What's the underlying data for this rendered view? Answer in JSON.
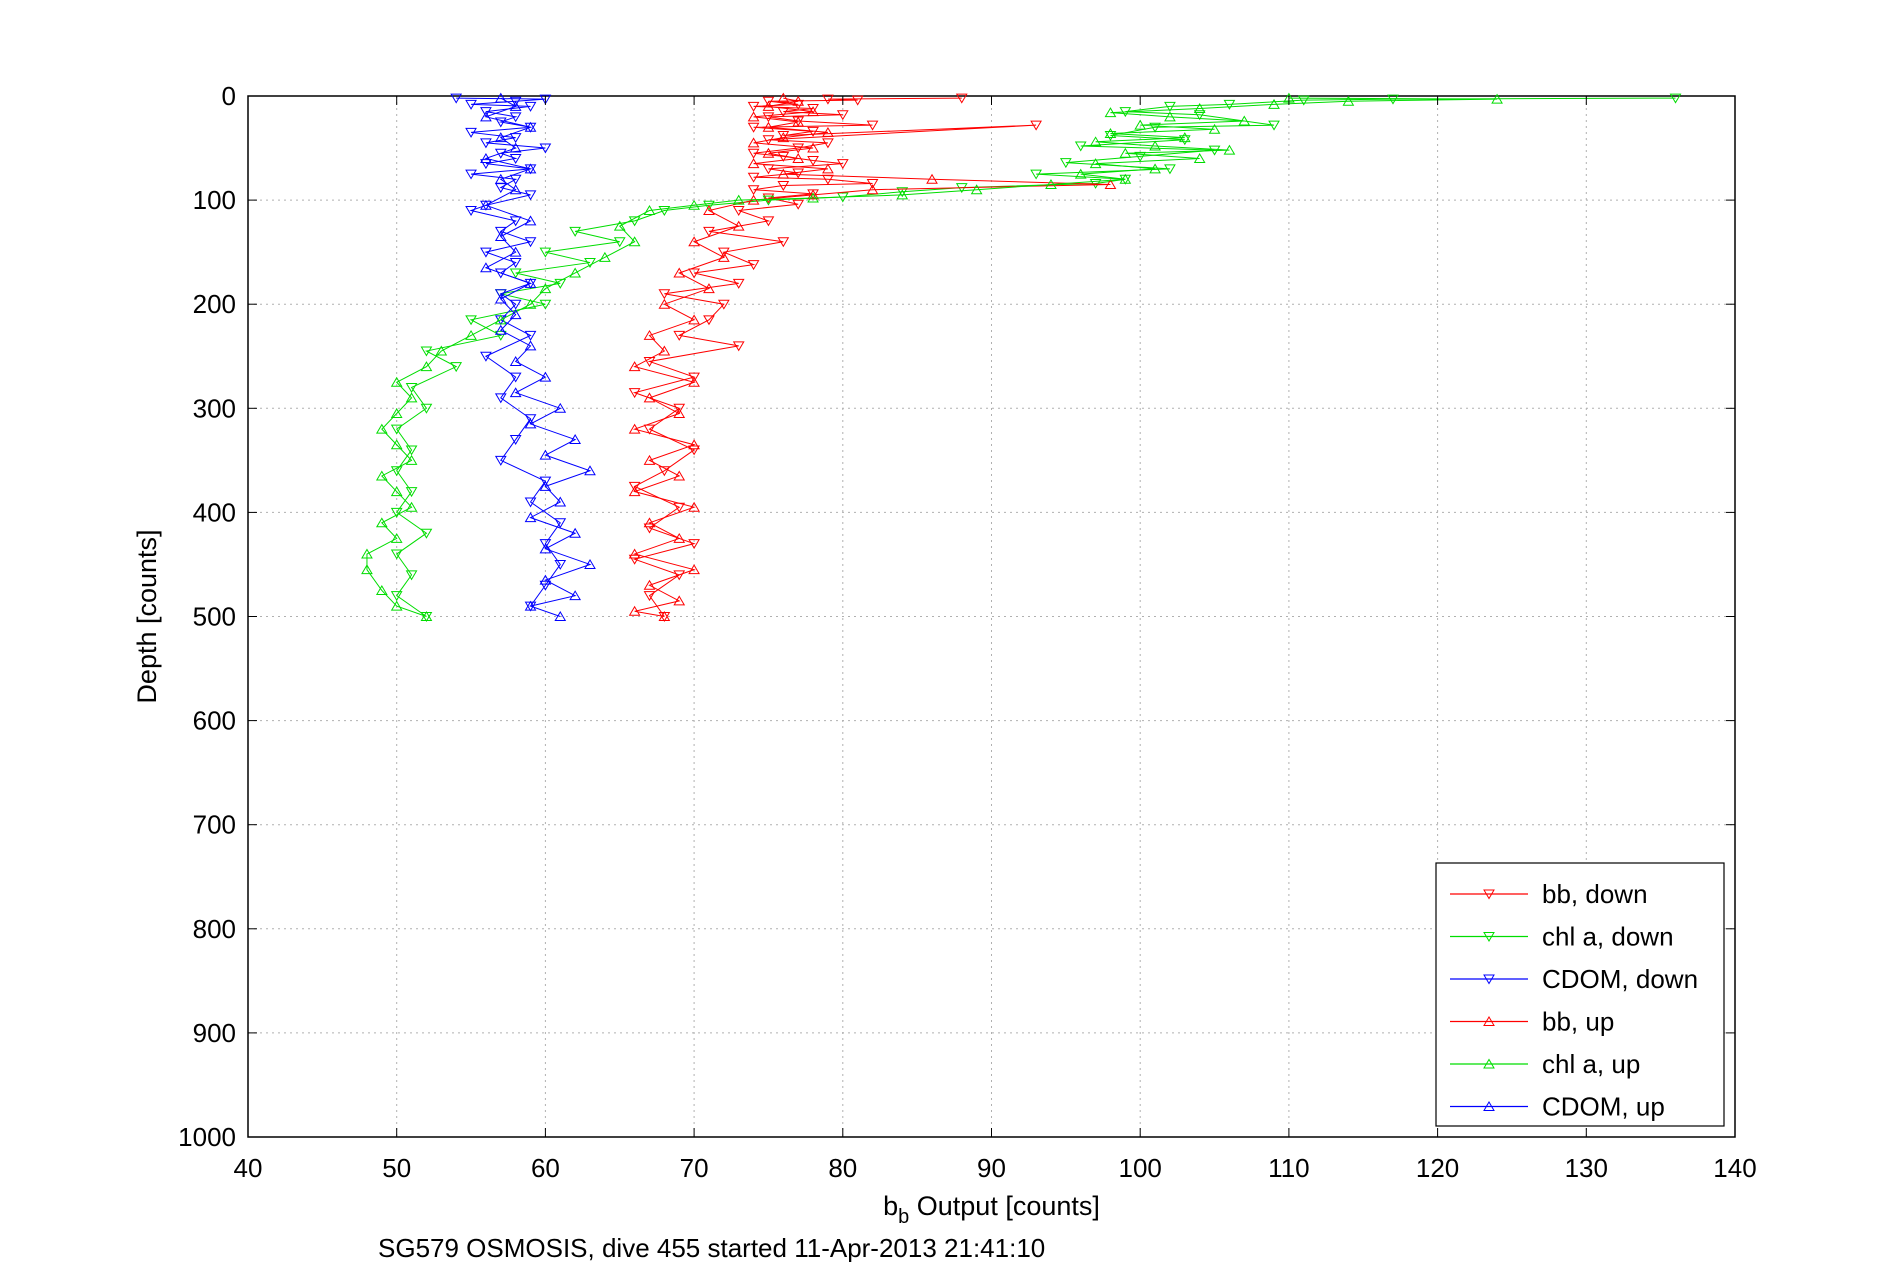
{
  "chart_data": {
    "type": "scatter",
    "xlabel_main": "b",
    "xlabel_sub": "b",
    "xlabel_rest": " Output [counts]",
    "ylabel": "Depth [counts]",
    "caption": "SG579 OSMOSIS, dive 455 started 11-Apr-2013 21:41:10",
    "xlim": [
      40,
      140
    ],
    "ylim": [
      0,
      1000
    ],
    "y_reversed": true,
    "grid": true,
    "legend_position": "bottom-right",
    "xticks": [
      "40",
      "50",
      "60",
      "70",
      "80",
      "90",
      "100",
      "110",
      "120",
      "130",
      "140"
    ],
    "yticks": [
      "0",
      "100",
      "200",
      "300",
      "400",
      "500",
      "600",
      "700",
      "800",
      "900",
      "1000"
    ],
    "series": [
      {
        "name": "bb, down",
        "color": "#ff0000",
        "marker": "triangle-down",
        "lines": true,
        "points": [
          [
            88,
            2
          ],
          [
            79,
            3
          ],
          [
            81,
            4
          ],
          [
            75,
            5
          ],
          [
            77,
            8
          ],
          [
            74,
            10
          ],
          [
            78,
            12
          ],
          [
            76,
            15
          ],
          [
            80,
            18
          ],
          [
            75,
            20
          ],
          [
            77,
            24
          ],
          [
            82,
            28
          ],
          [
            74,
            30
          ],
          [
            78,
            34
          ],
          [
            76,
            38
          ],
          [
            93,
            28
          ],
          [
            75,
            42
          ],
          [
            79,
            45
          ],
          [
            77,
            50
          ],
          [
            74,
            55
          ],
          [
            76,
            58
          ],
          [
            78,
            62
          ],
          [
            80,
            65
          ],
          [
            75,
            70
          ],
          [
            77,
            74
          ],
          [
            74,
            78
          ],
          [
            79,
            80
          ],
          [
            82,
            84
          ],
          [
            76,
            86
          ],
          [
            74,
            90
          ],
          [
            78,
            94
          ],
          [
            75,
            98
          ],
          [
            77,
            104
          ],
          [
            73,
            110
          ],
          [
            75,
            120
          ],
          [
            71,
            130
          ],
          [
            76,
            140
          ],
          [
            72,
            150
          ],
          [
            74,
            162
          ],
          [
            70,
            170
          ],
          [
            73,
            180
          ],
          [
            68,
            190
          ],
          [
            72,
            200
          ],
          [
            71,
            215
          ],
          [
            69,
            230
          ],
          [
            73,
            240
          ],
          [
            67,
            255
          ],
          [
            70,
            270
          ],
          [
            66,
            285
          ],
          [
            69,
            300
          ],
          [
            67,
            320
          ],
          [
            70,
            340
          ],
          [
            68,
            360
          ],
          [
            66,
            375
          ],
          [
            69,
            395
          ],
          [
            67,
            415
          ],
          [
            70,
            430
          ],
          [
            66,
            445
          ],
          [
            69,
            460
          ],
          [
            67,
            480
          ],
          [
            68,
            500
          ]
        ]
      },
      {
        "name": "chl a, down",
        "color": "#00dd00",
        "marker": "triangle-down",
        "lines": true,
        "points": [
          [
            136,
            2
          ],
          [
            117,
            3
          ],
          [
            111,
            4
          ],
          [
            106,
            8
          ],
          [
            102,
            10
          ],
          [
            99,
            15
          ],
          [
            104,
            18
          ],
          [
            109,
            28
          ],
          [
            101,
            30
          ],
          [
            98,
            38
          ],
          [
            103,
            42
          ],
          [
            96,
            48
          ],
          [
            105,
            52
          ],
          [
            100,
            58
          ],
          [
            95,
            64
          ],
          [
            102,
            70
          ],
          [
            93,
            75
          ],
          [
            99,
            80
          ],
          [
            97,
            84
          ],
          [
            88,
            88
          ],
          [
            84,
            92
          ],
          [
            80,
            97
          ],
          [
            75,
            100
          ],
          [
            71,
            105
          ],
          [
            68,
            110
          ],
          [
            66,
            120
          ],
          [
            62,
            130
          ],
          [
            65,
            140
          ],
          [
            60,
            150
          ],
          [
            63,
            160
          ],
          [
            58,
            170
          ],
          [
            61,
            180
          ],
          [
            57,
            190
          ],
          [
            60,
            200
          ],
          [
            55,
            215
          ],
          [
            57,
            230
          ],
          [
            52,
            245
          ],
          [
            54,
            260
          ],
          [
            51,
            280
          ],
          [
            52,
            300
          ],
          [
            50,
            320
          ],
          [
            51,
            340
          ],
          [
            50,
            360
          ],
          [
            51,
            380
          ],
          [
            50,
            400
          ],
          [
            52,
            420
          ],
          [
            50,
            440
          ],
          [
            51,
            460
          ],
          [
            50,
            480
          ],
          [
            52,
            500
          ]
        ]
      },
      {
        "name": "CDOM, down",
        "color": "#0000ff",
        "marker": "triangle-down",
        "lines": true,
        "points": [
          [
            54,
            2
          ],
          [
            60,
            3
          ],
          [
            58,
            5
          ],
          [
            55,
            8
          ],
          [
            59,
            10
          ],
          [
            56,
            15
          ],
          [
            58,
            20
          ],
          [
            57,
            25
          ],
          [
            59,
            30
          ],
          [
            55,
            35
          ],
          [
            58,
            40
          ],
          [
            56,
            45
          ],
          [
            60,
            50
          ],
          [
            57,
            55
          ],
          [
            58,
            60
          ],
          [
            56,
            65
          ],
          [
            59,
            70
          ],
          [
            55,
            75
          ],
          [
            58,
            80
          ],
          [
            57,
            88
          ],
          [
            59,
            95
          ],
          [
            56,
            105
          ],
          [
            55,
            110
          ],
          [
            58,
            120
          ],
          [
            57,
            130
          ],
          [
            59,
            140
          ],
          [
            56,
            150
          ],
          [
            58,
            160
          ],
          [
            57,
            170
          ],
          [
            59,
            180
          ],
          [
            57,
            190
          ],
          [
            58,
            200
          ],
          [
            57,
            215
          ],
          [
            59,
            230
          ],
          [
            56,
            250
          ],
          [
            58,
            270
          ],
          [
            57,
            290
          ],
          [
            59,
            310
          ],
          [
            58,
            330
          ],
          [
            57,
            350
          ],
          [
            60,
            370
          ],
          [
            59,
            390
          ],
          [
            61,
            410
          ],
          [
            60,
            430
          ],
          [
            61,
            450
          ],
          [
            60,
            470
          ],
          [
            59,
            490
          ]
        ]
      },
      {
        "name": "bb, up",
        "color": "#ff0000",
        "marker": "triangle-up",
        "lines": true,
        "points": [
          [
            68,
            500
          ],
          [
            66,
            495
          ],
          [
            69,
            485
          ],
          [
            67,
            470
          ],
          [
            70,
            455
          ],
          [
            66,
            440
          ],
          [
            69,
            425
          ],
          [
            67,
            410
          ],
          [
            70,
            395
          ],
          [
            66,
            380
          ],
          [
            69,
            365
          ],
          [
            67,
            350
          ],
          [
            70,
            335
          ],
          [
            66,
            320
          ],
          [
            69,
            305
          ],
          [
            67,
            290
          ],
          [
            70,
            275
          ],
          [
            66,
            260
          ],
          [
            68,
            245
          ],
          [
            67,
            230
          ],
          [
            70,
            215
          ],
          [
            68,
            200
          ],
          [
            71,
            185
          ],
          [
            69,
            170
          ],
          [
            72,
            155
          ],
          [
            70,
            140
          ],
          [
            73,
            125
          ],
          [
            71,
            110
          ],
          [
            74,
            100
          ],
          [
            78,
            95
          ],
          [
            82,
            90
          ],
          [
            98,
            85
          ],
          [
            86,
            80
          ],
          [
            76,
            75
          ],
          [
            79,
            70
          ],
          [
            74,
            65
          ],
          [
            77,
            60
          ],
          [
            75,
            55
          ],
          [
            78,
            50
          ],
          [
            74,
            45
          ],
          [
            76,
            40
          ],
          [
            79,
            35
          ],
          [
            75,
            30
          ],
          [
            77,
            25
          ],
          [
            74,
            20
          ],
          [
            78,
            15
          ],
          [
            75,
            10
          ],
          [
            77,
            5
          ],
          [
            76,
            2
          ]
        ]
      },
      {
        "name": "chl a, up",
        "color": "#00dd00",
        "marker": "triangle-up",
        "lines": true,
        "points": [
          [
            52,
            500
          ],
          [
            50,
            490
          ],
          [
            49,
            475
          ],
          [
            48,
            455
          ],
          [
            48,
            440
          ],
          [
            50,
            425
          ],
          [
            49,
            410
          ],
          [
            51,
            395
          ],
          [
            50,
            380
          ],
          [
            49,
            365
          ],
          [
            51,
            350
          ],
          [
            50,
            335
          ],
          [
            49,
            320
          ],
          [
            50,
            305
          ],
          [
            51,
            290
          ],
          [
            50,
            275
          ],
          [
            52,
            260
          ],
          [
            53,
            245
          ],
          [
            55,
            230
          ],
          [
            57,
            215
          ],
          [
            59,
            200
          ],
          [
            60,
            185
          ],
          [
            62,
            170
          ],
          [
            64,
            155
          ],
          [
            66,
            140
          ],
          [
            65,
            125
          ],
          [
            67,
            110
          ],
          [
            70,
            105
          ],
          [
            73,
            100
          ],
          [
            78,
            98
          ],
          [
            84,
            95
          ],
          [
            89,
            90
          ],
          [
            94,
            85
          ],
          [
            99,
            80
          ],
          [
            96,
            75
          ],
          [
            101,
            70
          ],
          [
            97,
            65
          ],
          [
            104,
            60
          ],
          [
            99,
            55
          ],
          [
            106,
            52
          ],
          [
            101,
            48
          ],
          [
            97,
            44
          ],
          [
            103,
            40
          ],
          [
            98,
            36
          ],
          [
            105,
            32
          ],
          [
            100,
            28
          ],
          [
            107,
            24
          ],
          [
            102,
            20
          ],
          [
            98,
            16
          ],
          [
            104,
            12
          ],
          [
            109,
            8
          ],
          [
            114,
            5
          ],
          [
            124,
            3
          ],
          [
            110,
            2
          ]
        ]
      },
      {
        "name": "CDOM, up",
        "color": "#0000ff",
        "marker": "triangle-up",
        "lines": true,
        "points": [
          [
            61,
            500
          ],
          [
            59,
            490
          ],
          [
            62,
            480
          ],
          [
            60,
            465
          ],
          [
            63,
            450
          ],
          [
            60,
            435
          ],
          [
            62,
            420
          ],
          [
            59,
            405
          ],
          [
            61,
            390
          ],
          [
            60,
            375
          ],
          [
            63,
            360
          ],
          [
            60,
            345
          ],
          [
            62,
            330
          ],
          [
            59,
            315
          ],
          [
            61,
            300
          ],
          [
            58,
            285
          ],
          [
            60,
            270
          ],
          [
            58,
            255
          ],
          [
            59,
            240
          ],
          [
            57,
            225
          ],
          [
            58,
            210
          ],
          [
            57,
            195
          ],
          [
            59,
            180
          ],
          [
            56,
            165
          ],
          [
            58,
            150
          ],
          [
            57,
            135
          ],
          [
            59,
            120
          ],
          [
            56,
            105
          ],
          [
            58,
            90
          ],
          [
            57,
            80
          ],
          [
            59,
            70
          ],
          [
            56,
            60
          ],
          [
            58,
            50
          ],
          [
            57,
            40
          ],
          [
            59,
            30
          ],
          [
            56,
            20
          ],
          [
            58,
            10
          ],
          [
            57,
            2
          ]
        ]
      }
    ]
  }
}
